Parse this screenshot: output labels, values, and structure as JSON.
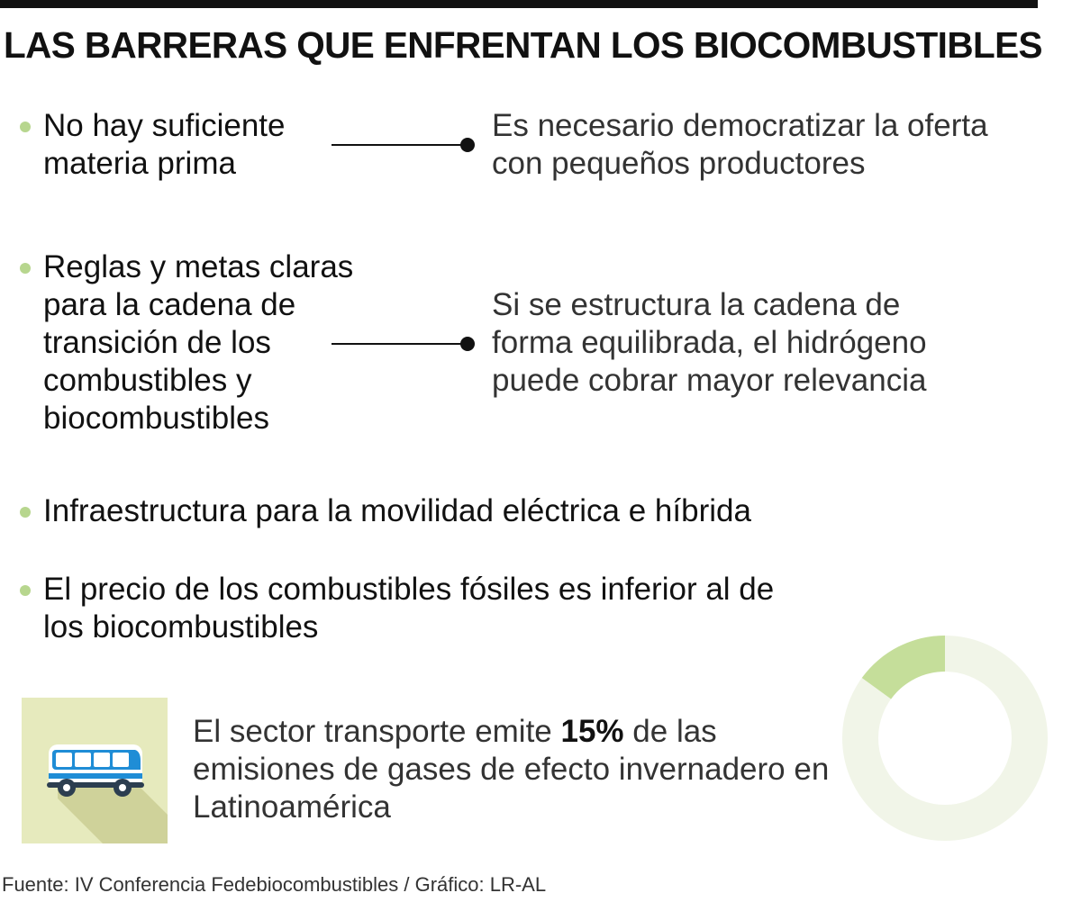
{
  "title": "LAS BARRERAS QUE ENFRENTAN LOS BIOCOMBUSTIBLES",
  "barriers": [
    {
      "text": "No hay suficiente\nmateria prima",
      "solution": "Es necesario democratizar la oferta\ncon pequeños productores"
    },
    {
      "text": "Reglas y metas claras\npara la cadena de\ntransición de los\ncombustibles y\nbiocombustibles",
      "solution": "Si se estructura la cadena de\nforma equilibrada, el hidrógeno\npuede cobrar mayor relevancia"
    },
    {
      "text": "Infraestructura para la movilidad eléctrica e híbrida"
    },
    {
      "text": "El precio de los combustibles fósiles es inferior al de\nlos biocombustibles"
    }
  ],
  "stat": {
    "before": "El sector transporte emite ",
    "highlight": "15%",
    "after": " de las emisiones de gases de efecto invernadero en Latinoamérica",
    "percent": 15
  },
  "source": "Fuente: IV Conferencia Fedebiocombustibles / Gráfico: LR-AL",
  "colors": {
    "bullet": "#b7d68e",
    "donut_fill": "#c5de9a",
    "donut_track": "#f1f5e8",
    "tile_bg": "#e6eabd",
    "bus_blue": "#1f8dd6",
    "bus_dark": "#2c3e50"
  },
  "icons": [
    "bus-icon"
  ]
}
